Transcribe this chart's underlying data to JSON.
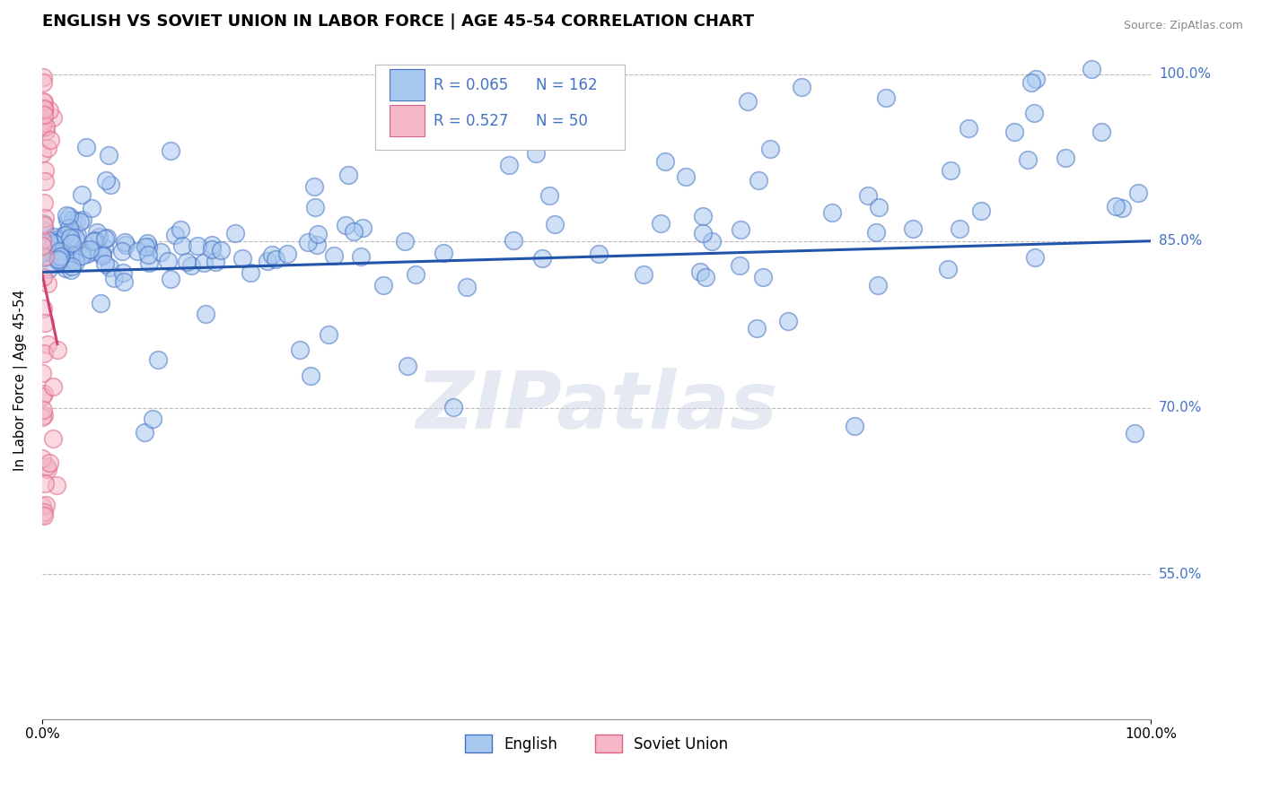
{
  "title": "ENGLISH VS SOVIET UNION IN LABOR FORCE | AGE 45-54 CORRELATION CHART",
  "source": "Source: ZipAtlas.com",
  "ylabel": "In Labor Force | Age 45-54",
  "xlim": [
    0.0,
    1.0
  ],
  "ylim": [
    0.42,
    1.03
  ],
  "yticks": [
    0.55,
    0.7,
    0.85,
    1.0
  ],
  "ytick_labels": [
    "55.0%",
    "70.0%",
    "85.0%",
    "100.0%"
  ],
  "xtick_labels": [
    "0.0%",
    "100.0%"
  ],
  "english_R": 0.065,
  "english_N": 162,
  "soviet_R": 0.527,
  "soviet_N": 50,
  "english_fill": "#a8c8f0",
  "english_edge": "#4472C4",
  "soviet_fill": "#f5b8c8",
  "soviet_edge": "#e06080",
  "soviet_line_color": "#d04070",
  "english_line_color": "#2255aa",
  "legend_label_english": "English",
  "legend_label_soviet": "Soviet Union",
  "background_color": "#FFFFFF",
  "watermark": "ZIPatlas",
  "title_fontsize": 13,
  "axis_label_fontsize": 11,
  "tick_fontsize": 11,
  "label_color": "#4472C4"
}
